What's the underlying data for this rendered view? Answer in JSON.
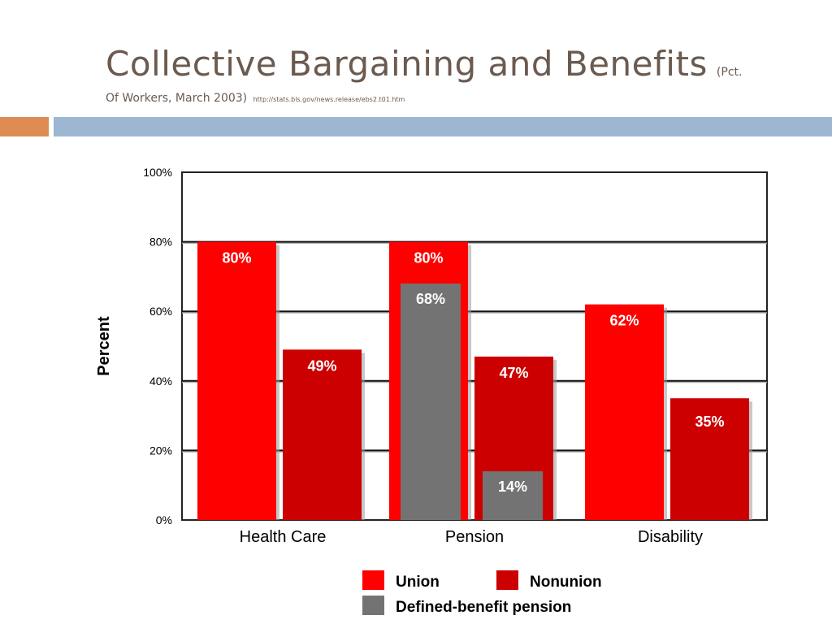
{
  "header": {
    "title": "Collective Bargaining and Benefits",
    "subtitle_part1": "(Pct.",
    "subtitle_part2": "Of Workers, March 2003)",
    "source_url": "http://stats.bls.gov/news.release/ebs2.t01.htm"
  },
  "colors": {
    "union": "#ff0000",
    "nonunion": "#cc0000",
    "defined_benefit": "#737373",
    "title_text": "#6b5a4f",
    "band_orange": "#de8c52",
    "band_blue": "#9db7d3"
  },
  "chart_data": {
    "type": "bar",
    "title": "",
    "xlabel": "",
    "ylabel": "Percent",
    "ylim": [
      0,
      100
    ],
    "yticks": [
      0,
      20,
      40,
      60,
      80,
      100
    ],
    "ytick_labels": [
      "0%",
      "20%",
      "40%",
      "60%",
      "80%",
      "100%"
    ],
    "grid": true,
    "legend_position": "bottom",
    "categories": [
      "Health Care",
      "Pension",
      "Disability"
    ],
    "series": [
      {
        "name": "Union",
        "values": [
          80,
          80,
          62
        ],
        "labels": [
          "80%",
          "80%",
          "62%"
        ]
      },
      {
        "name": "Nonunion",
        "values": [
          49,
          47,
          35
        ],
        "labels": [
          "49%",
          "47%",
          "35%"
        ]
      }
    ],
    "overlay_series": [
      {
        "name": "Defined-benefit pension",
        "category": "Pension",
        "values": [
          68,
          14
        ],
        "labels": [
          "68%",
          "14%"
        ]
      }
    ]
  }
}
